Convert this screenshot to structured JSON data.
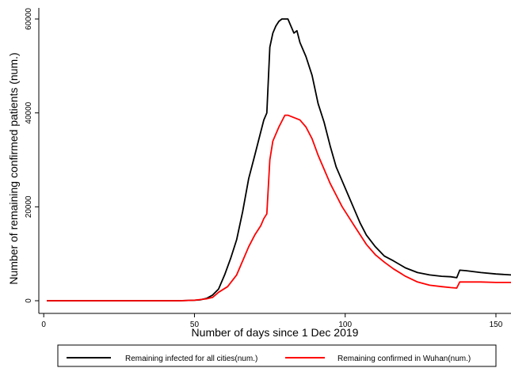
{
  "chart_data": {
    "type": "line",
    "title": "",
    "xlabel": "Number of days since 1 Dec 2019",
    "ylabel": "Number of remaining confirmed patients (num.)",
    "xlim": [
      0,
      155
    ],
    "ylim": [
      0,
      60000
    ],
    "x_ticks": [
      0,
      50,
      100,
      150
    ],
    "x_tick_labels": [
      "0",
      "50",
      "100",
      "150"
    ],
    "y_ticks": [
      0,
      20000,
      40000,
      60000
    ],
    "y_tick_labels": [
      "0",
      "20000",
      "40000",
      "60000"
    ],
    "grid": "none",
    "legend_position": "bottom",
    "series": [
      {
        "name": "Remaining infected for all cities(num.)",
        "color": "#000000",
        "points": [
          [
            1,
            0
          ],
          [
            10,
            0
          ],
          [
            20,
            0
          ],
          [
            30,
            0
          ],
          [
            40,
            0
          ],
          [
            45,
            0
          ],
          [
            50,
            100
          ],
          [
            52,
            200
          ],
          [
            54,
            500
          ],
          [
            56,
            1200
          ],
          [
            58,
            2500
          ],
          [
            60,
            5500
          ],
          [
            62,
            9000
          ],
          [
            64,
            13000
          ],
          [
            66,
            19000
          ],
          [
            68,
            26000
          ],
          [
            70,
            31000
          ],
          [
            72,
            36000
          ],
          [
            73,
            38500
          ],
          [
            74,
            40000
          ],
          [
            75,
            54000
          ],
          [
            76,
            57000
          ],
          [
            77,
            58500
          ],
          [
            78,
            59500
          ],
          [
            79,
            60000
          ],
          [
            81,
            60000
          ],
          [
            83,
            57000
          ],
          [
            84,
            57500
          ],
          [
            85,
            55000
          ],
          [
            87,
            52000
          ],
          [
            89,
            48000
          ],
          [
            91,
            42000
          ],
          [
            93,
            38000
          ],
          [
            95,
            33000
          ],
          [
            97,
            28500
          ],
          [
            99,
            25500
          ],
          [
            101,
            22500
          ],
          [
            103,
            19500
          ],
          [
            105,
            16500
          ],
          [
            107,
            14000
          ],
          [
            110,
            11500
          ],
          [
            113,
            9500
          ],
          [
            116,
            8500
          ],
          [
            120,
            7000
          ],
          [
            124,
            6000
          ],
          [
            128,
            5500
          ],
          [
            132,
            5200
          ],
          [
            135,
            5100
          ],
          [
            137,
            4900
          ],
          [
            138,
            6500
          ],
          [
            140,
            6400
          ],
          [
            145,
            6000
          ],
          [
            150,
            5700
          ],
          [
            155,
            5500
          ]
        ]
      },
      {
        "name": "Remaining confirmed in Wuhan(num.)",
        "color": "#ff0000",
        "points": [
          [
            1,
            0
          ],
          [
            10,
            0
          ],
          [
            20,
            0
          ],
          [
            30,
            0
          ],
          [
            40,
            0
          ],
          [
            45,
            0
          ],
          [
            50,
            100
          ],
          [
            54,
            400
          ],
          [
            56,
            700
          ],
          [
            58,
            1800
          ],
          [
            61,
            3000
          ],
          [
            64,
            5500
          ],
          [
            66,
            8500
          ],
          [
            68,
            11500
          ],
          [
            70,
            14000
          ],
          [
            72,
            16000
          ],
          [
            73,
            17500
          ],
          [
            74,
            18500
          ],
          [
            75,
            30000
          ],
          [
            76,
            34000
          ],
          [
            78,
            37000
          ],
          [
            80,
            39500
          ],
          [
            81,
            39500
          ],
          [
            83,
            39000
          ],
          [
            85,
            38500
          ],
          [
            87,
            37000
          ],
          [
            89,
            34500
          ],
          [
            91,
            31000
          ],
          [
            93,
            28000
          ],
          [
            95,
            25000
          ],
          [
            97,
            22500
          ],
          [
            99,
            20000
          ],
          [
            101,
            18000
          ],
          [
            103,
            16000
          ],
          [
            105,
            14000
          ],
          [
            107,
            12000
          ],
          [
            110,
            9800
          ],
          [
            113,
            8200
          ],
          [
            116,
            6800
          ],
          [
            120,
            5200
          ],
          [
            124,
            4000
          ],
          [
            128,
            3300
          ],
          [
            132,
            3000
          ],
          [
            135,
            2800
          ],
          [
            137,
            2700
          ],
          [
            138,
            4000
          ],
          [
            145,
            4000
          ],
          [
            150,
            3900
          ],
          [
            155,
            3900
          ]
        ]
      }
    ]
  }
}
